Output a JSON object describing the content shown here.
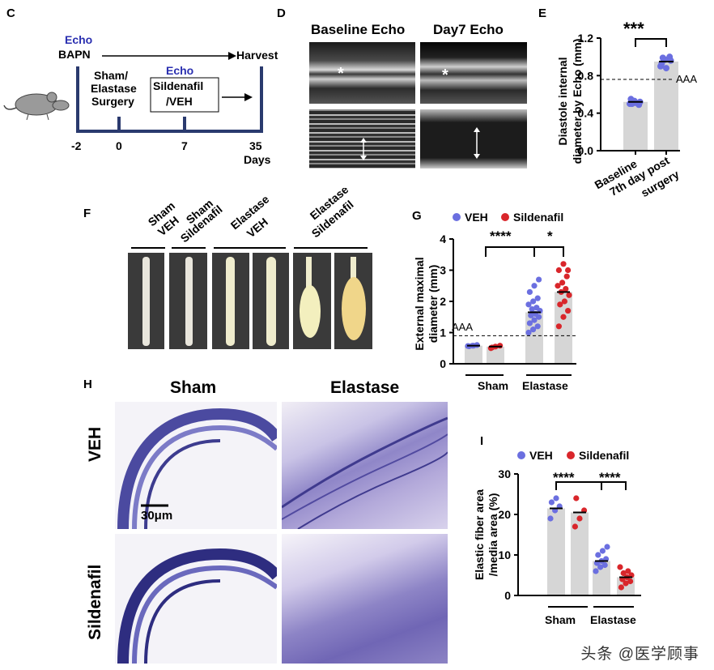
{
  "panels": {
    "C": {
      "letter": "C",
      "echo_top": "Echo",
      "bapn": "BAPN",
      "harvest": "Harvest",
      "surgery_lines": [
        "Sham/",
        "Elastase",
        "Surgery"
      ],
      "echo_mid": "Echo",
      "treat_lines": [
        "Sildenafil",
        "/VEH"
      ],
      "days": [
        "-2",
        "0",
        "7",
        "35"
      ],
      "days_label": "Days",
      "mouse_icon": "mouse-icon"
    },
    "D": {
      "letter": "D",
      "titles": [
        "Baseline Echo",
        "Day7 Echo"
      ],
      "markers": [
        "*",
        "*"
      ]
    },
    "E": {
      "letter": "E",
      "ylabel_lines": [
        "Diastole internal",
        "diameter by Echo (mm)"
      ],
      "yticks": [
        "1.2",
        "0.8",
        "0.4",
        "0.0"
      ],
      "sig": "***",
      "aaa": "AAA",
      "xcats": [
        "Baseline",
        "7th day post",
        "surgery"
      ]
    },
    "F": {
      "letter": "F",
      "groups": [
        {
          "lines": [
            "Sham",
            "VEH"
          ]
        },
        {
          "lines": [
            "Sham",
            "Sildenafil"
          ]
        },
        {
          "lines": [
            "Elastase",
            "VEH"
          ]
        },
        {
          "lines": [
            "Elastase",
            "Sildenafil"
          ]
        }
      ]
    },
    "G": {
      "letter": "G",
      "legend": [
        "VEH",
        "Sildenafil"
      ],
      "ylabel_lines": [
        "External maximal",
        "diameter (mm)"
      ],
      "yticks": [
        "4",
        "3",
        "2",
        "1",
        "0"
      ],
      "sig": [
        "****",
        "*"
      ],
      "aaa": "AAA",
      "xcats": [
        "Sham",
        "Elastase"
      ]
    },
    "H": {
      "letter": "H",
      "cols": [
        "Sham",
        "Elastase"
      ],
      "rows": [
        "VEH",
        "Sildenafil"
      ],
      "scalebar": "30μm"
    },
    "I": {
      "letter": "I",
      "legend": [
        "VEH",
        "Sildenafil"
      ],
      "ylabel_lines": [
        "Elastic fiber area",
        "/media area (%)"
      ],
      "yticks": [
        "30",
        "20",
        "10",
        "0"
      ],
      "sig": [
        "****",
        "****"
      ],
      "xcats": [
        "Sham",
        "Elastase"
      ]
    }
  },
  "colors": {
    "veh": "#6b6fe0",
    "sildenafil": "#d9262b",
    "bar": "#d6d6d6"
  },
  "watermark": "头条 @医学顾事",
  "chart_data": [
    {
      "panel": "E",
      "type": "bar",
      "categories": [
        "Baseline",
        "7th day post surgery"
      ],
      "values": [
        0.52,
        0.95
      ],
      "ylabel": "Diastole internal diameter by Echo (mm)",
      "ylim": [
        0,
        1.2
      ],
      "threshold": {
        "label": "AAA",
        "value": 0.76
      },
      "points": [
        [
          0.5,
          0.53,
          0.49,
          0.55,
          0.51,
          0.52,
          0.5
        ],
        [
          0.9,
          0.97,
          1.0,
          0.93,
          0.88,
          0.96,
          0.99
        ]
      ]
    },
    {
      "panel": "G",
      "type": "bar",
      "categories": [
        "Sham",
        "Elastase"
      ],
      "series": [
        {
          "name": "VEH",
          "values": [
            0.58,
            1.65
          ],
          "points": [
            [
              0.57,
              0.58,
              0.6,
              0.56,
              0.58
            ],
            [
              1.0,
              1.1,
              1.2,
              1.3,
              1.4,
              1.5,
              1.55,
              1.6,
              1.7,
              1.75,
              1.8,
              1.9,
              2.0,
              2.1,
              2.3,
              2.5,
              2.7
            ]
          ]
        },
        {
          "name": "Sildenafil",
          "values": [
            0.55,
            2.3
          ],
          "points": [
            [
              0.5,
              0.55,
              0.58,
              0.52
            ],
            [
              1.2,
              1.5,
              1.7,
              1.9,
              2.0,
              2.2,
              2.3,
              2.4,
              2.5,
              2.6,
              2.8,
              3.0,
              3.2,
              3.0
            ]
          ]
        }
      ],
      "ylabel": "External maximal diameter (mm)",
      "ylim": [
        0,
        4
      ],
      "threshold": {
        "label": "AAA",
        "value": 0.9
      }
    },
    {
      "panel": "I",
      "type": "bar",
      "categories": [
        "Sham",
        "Elastase"
      ],
      "series": [
        {
          "name": "VEH",
          "values": [
            21.5,
            8.5
          ],
          "points": [
            [
              19,
              21,
              22,
              23,
              24
            ],
            [
              6,
              7,
              7.5,
              8,
              8.5,
              9,
              10,
              11,
              12
            ]
          ]
        },
        {
          "name": "Sildenafil",
          "values": [
            20.5,
            4.5
          ],
          "points": [
            [
              17,
              19,
              21,
              24
            ],
            [
              2,
              3,
              3.5,
              4,
              4.5,
              5,
              5.5,
              6,
              7
            ]
          ]
        }
      ],
      "ylabel": "Elastic fiber area /media area (%)",
      "ylim": [
        0,
        30
      ]
    }
  ]
}
